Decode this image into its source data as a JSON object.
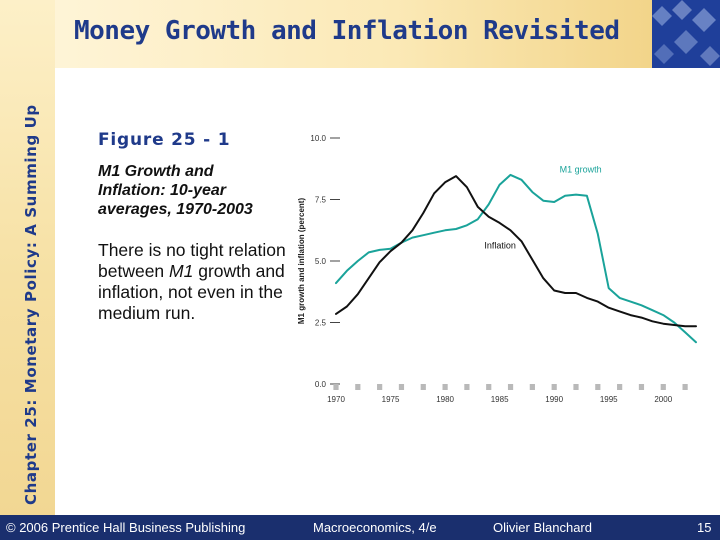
{
  "slide": {
    "sidebar_title": "Chapter 25: Monetary Policy: A Summing Up",
    "title": "Money Growth and Inflation Revisited",
    "figure_label": "Figure 25 - 1",
    "caption": "M1 Growth and Inflation:  10-year averages, 1970-2003",
    "note_parts": [
      "There is no tight relation between ",
      "M1",
      " growth and inflation, not even in the medium run."
    ]
  },
  "footer": {
    "copyright": "© 2006 Prentice Hall Business Publishing",
    "book": "Macroeconomics, 4/e",
    "author": "Olivier Blanchard",
    "page": "15"
  },
  "colors": {
    "title_blue": "#1f3a8a",
    "footer_navy": "#1a2f6e",
    "m1_growth": "#1aa39a",
    "inflation": "#111111"
  },
  "chart_data": {
    "type": "line",
    "title": "",
    "xlabel": "",
    "ylabel": "M1 growth and inflation (percent)",
    "x_tick_labels": [
      "1970",
      "1975",
      "1980",
      "1985",
      "1990",
      "1995",
      "2000"
    ],
    "y_tick_labels": [
      "0.0",
      "2.5",
      "5.0",
      "7.5",
      "10.0"
    ],
    "xlim": [
      1970,
      2003
    ],
    "ylim": [
      0,
      10
    ],
    "grid": false,
    "legend": "inline labels",
    "series": [
      {
        "name": "M1 growth",
        "color": "#1aa39a",
        "x": [
          1970,
          1971,
          1972,
          1973,
          1974,
          1975,
          1976,
          1977,
          1978,
          1979,
          1980,
          1981,
          1982,
          1983,
          1984,
          1985,
          1986,
          1987,
          1988,
          1989,
          1990,
          1991,
          1992,
          1993,
          1994,
          1995,
          1996,
          1997,
          1998,
          1999,
          2000,
          2001,
          2002,
          2003
        ],
        "values": [
          4.1,
          4.6,
          5.0,
          5.35,
          5.45,
          5.5,
          5.75,
          5.95,
          6.05,
          6.15,
          6.25,
          6.3,
          6.45,
          6.7,
          7.3,
          8.1,
          8.5,
          8.3,
          7.8,
          7.45,
          7.4,
          7.65,
          7.7,
          7.65,
          6.1,
          3.9,
          3.5,
          3.35,
          3.2,
          3.0,
          2.8,
          2.5,
          2.1,
          1.7
        ]
      },
      {
        "name": "Inflation",
        "color": "#111111",
        "x": [
          1970,
          1971,
          1972,
          1973,
          1974,
          1975,
          1976,
          1977,
          1978,
          1979,
          1980,
          1981,
          1982,
          1983,
          1984,
          1985,
          1986,
          1987,
          1988,
          1989,
          1990,
          1991,
          1992,
          1993,
          1994,
          1995,
          1996,
          1997,
          1998,
          1999,
          2000,
          2001,
          2002,
          2003
        ],
        "values": [
          2.85,
          3.15,
          3.65,
          4.3,
          4.95,
          5.4,
          5.75,
          6.25,
          6.95,
          7.75,
          8.2,
          8.45,
          8.0,
          7.2,
          6.8,
          6.55,
          6.25,
          5.8,
          5.05,
          4.3,
          3.8,
          3.7,
          3.7,
          3.5,
          3.35,
          3.1,
          2.95,
          2.8,
          2.7,
          2.55,
          2.45,
          2.4,
          2.35,
          2.35
        ]
      }
    ]
  }
}
